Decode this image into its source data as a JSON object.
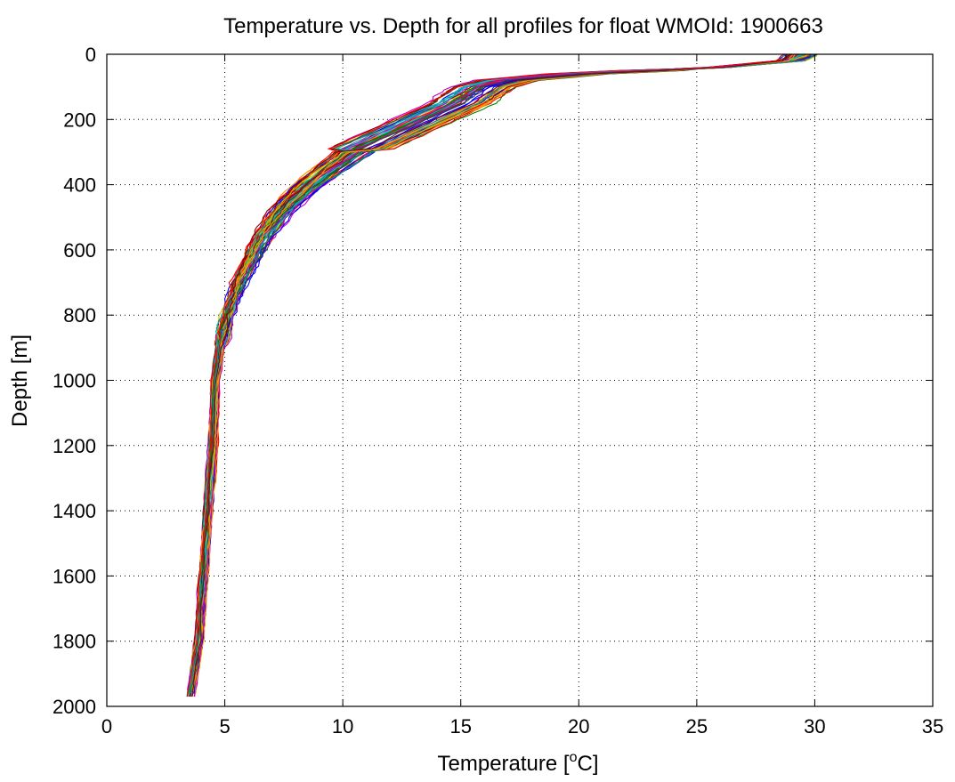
{
  "chart_data": {
    "type": "line",
    "title": "Temperature vs. Depth for all profiles for float WMOId: 1900663",
    "xlabel": {
      "prefix": "Temperature [",
      "sup": "o",
      "suffix": "C]"
    },
    "ylabel": "Depth [m]",
    "xlim": [
      0,
      35
    ],
    "ylim": [
      0,
      2000
    ],
    "y_reversed": true,
    "grid": true,
    "grid_style": "dotted",
    "x_ticks": [
      "0",
      "5",
      "10",
      "15",
      "20",
      "25",
      "30",
      "35"
    ],
    "y_ticks": [
      "0",
      "200",
      "400",
      "600",
      "800",
      "1000",
      "1200",
      "1400",
      "1600",
      "1800",
      "2000"
    ],
    "profile_count_estimate": 60,
    "colors": [
      "#0000ff",
      "#008000",
      "#ff0000",
      "#00bfbf",
      "#bf00bf",
      "#bfbf00",
      "#404040",
      "#ff8c00",
      "#1a8a8a",
      "#8b0000"
    ],
    "median_profile": [
      {
        "depth": 0,
        "temp": 29.5
      },
      {
        "depth": 20,
        "temp": 29.0
      },
      {
        "depth": 40,
        "temp": 26.0
      },
      {
        "depth": 60,
        "temp": 20.0
      },
      {
        "depth": 80,
        "temp": 17.0
      },
      {
        "depth": 100,
        "temp": 16.0
      },
      {
        "depth": 150,
        "temp": 15.0
      },
      {
        "depth": 200,
        "temp": 13.5
      },
      {
        "depth": 250,
        "temp": 12.0
      },
      {
        "depth": 300,
        "temp": 10.5
      },
      {
        "depth": 350,
        "temp": 9.5
      },
      {
        "depth": 400,
        "temp": 8.6
      },
      {
        "depth": 450,
        "temp": 7.8
      },
      {
        "depth": 500,
        "temp": 7.2
      },
      {
        "depth": 550,
        "temp": 6.7
      },
      {
        "depth": 600,
        "temp": 6.3
      },
      {
        "depth": 700,
        "temp": 5.6
      },
      {
        "depth": 800,
        "temp": 5.1
      },
      {
        "depth": 900,
        "temp": 4.8
      },
      {
        "depth": 1000,
        "temp": 4.6
      },
      {
        "depth": 1200,
        "temp": 4.5
      },
      {
        "depth": 1400,
        "temp": 4.3
      },
      {
        "depth": 1600,
        "temp": 4.1
      },
      {
        "depth": 1800,
        "temp": 3.9
      },
      {
        "depth": 1950,
        "temp": 3.6
      },
      {
        "depth": 1975,
        "temp": 3.55
      }
    ]
  }
}
